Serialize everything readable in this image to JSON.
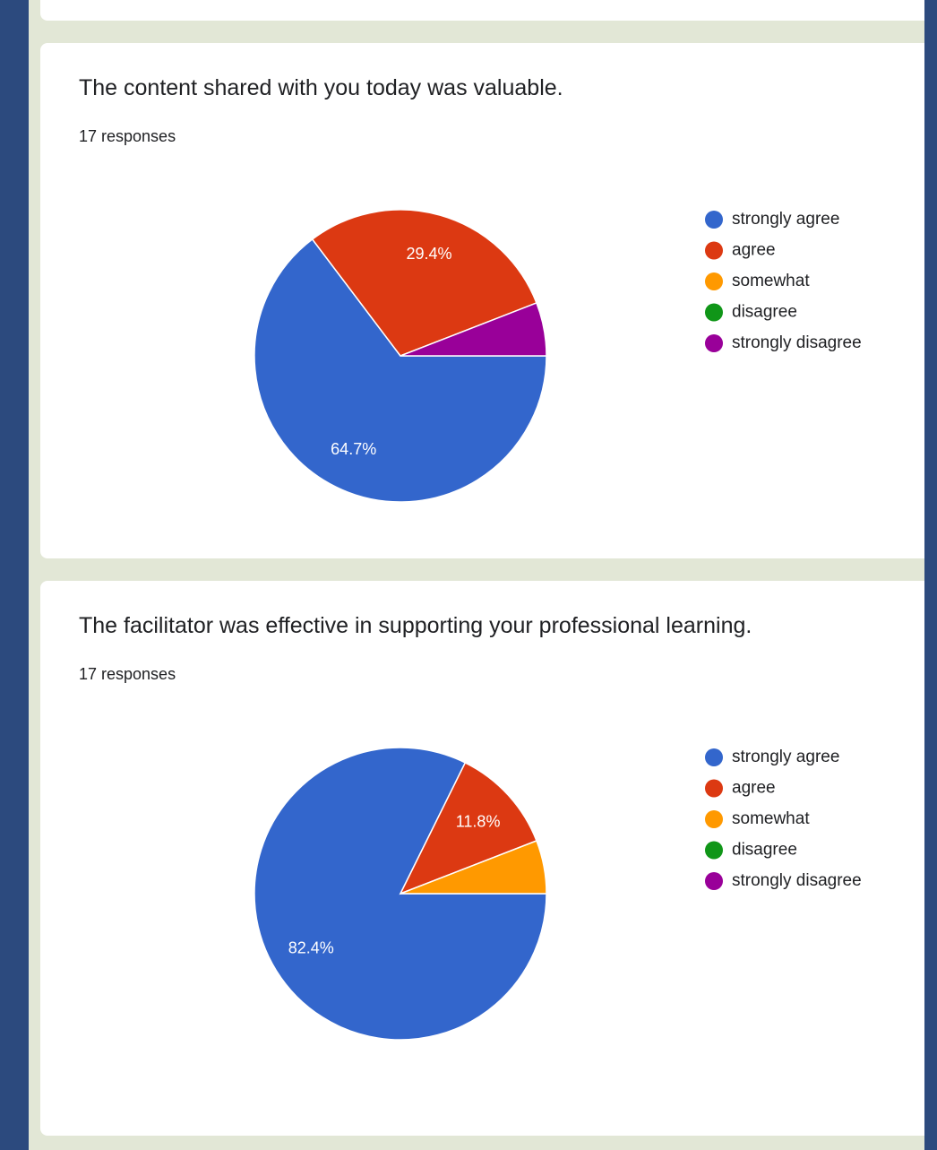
{
  "chart_data": [
    {
      "type": "pie",
      "title": "The content shared with you today was valuable.",
      "subtitle": "17 responses",
      "categories": [
        "strongly agree",
        "agree",
        "somewhat",
        "disagree",
        "strongly disagree"
      ],
      "values": [
        64.7,
        29.4,
        0,
        0,
        5.9
      ],
      "value_labels": [
        "64.7%",
        "29.4%",
        null,
        null,
        null
      ],
      "colors": [
        "#3366cc",
        "#dc3912",
        "#ff9900",
        "#109618",
        "#990099"
      ],
      "legend": "right"
    },
    {
      "type": "pie",
      "title": "The facilitator was effective in supporting your professional learning.",
      "subtitle": "17 responses",
      "categories": [
        "strongly agree",
        "agree",
        "somewhat",
        "disagree",
        "strongly disagree"
      ],
      "values": [
        82.4,
        11.8,
        5.9,
        0,
        0
      ],
      "value_labels": [
        "82.4%",
        "11.8%",
        null,
        null,
        null
      ],
      "colors": [
        "#3366cc",
        "#dc3912",
        "#ff9900",
        "#109618",
        "#990099"
      ],
      "legend": "right"
    }
  ]
}
